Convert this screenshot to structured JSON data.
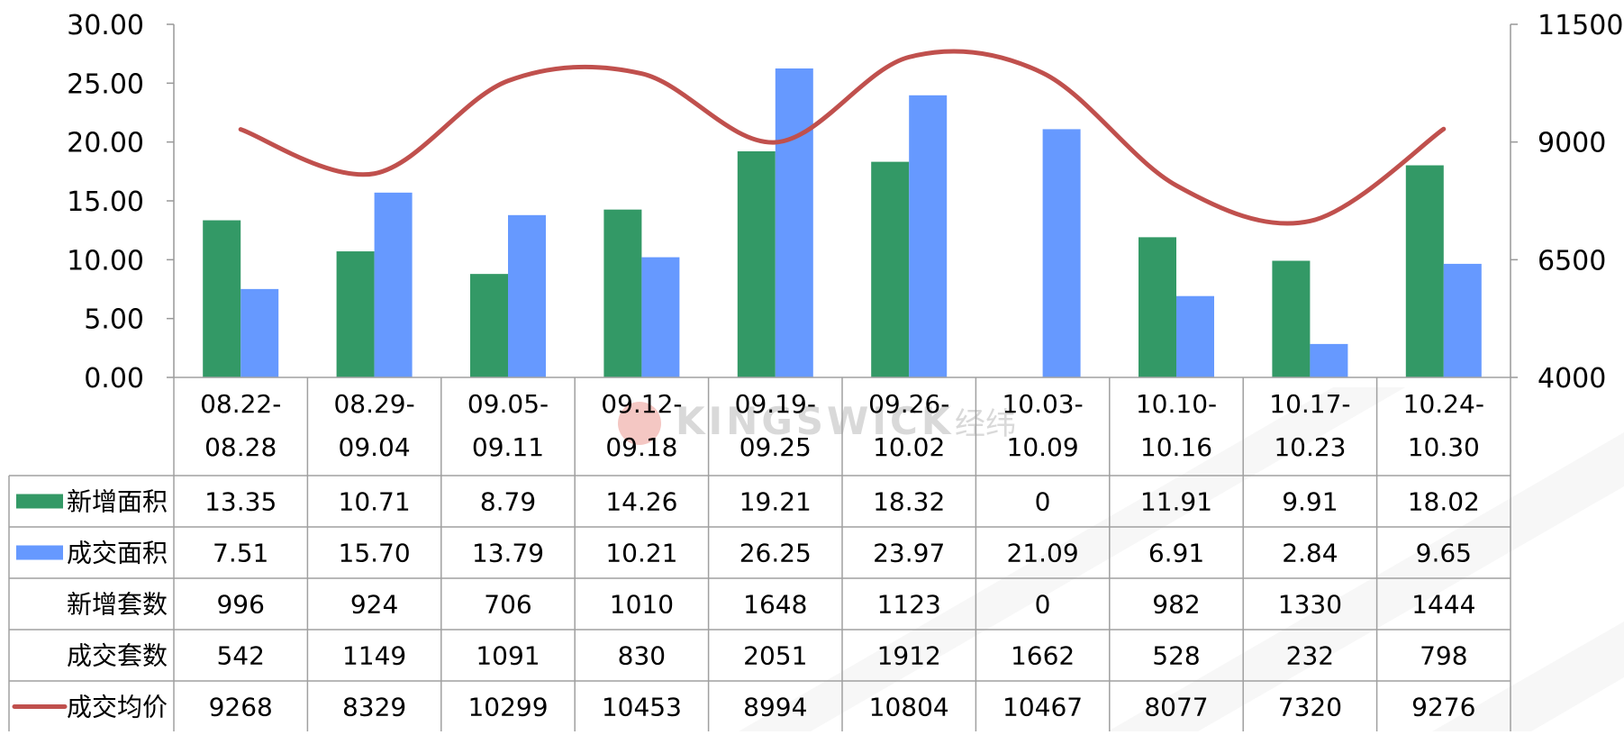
{
  "watermark": {
    "brand": "KINGSWICK",
    "brand_cn": "经纬"
  },
  "chart_data": {
    "type": "bar",
    "categories": [
      [
        "08.22-",
        "08.28"
      ],
      [
        "08.29-",
        "09.04"
      ],
      [
        "09.05-",
        "09.11"
      ],
      [
        "09.12-",
        "09.18"
      ],
      [
        "09.19-",
        "09.25"
      ],
      [
        "09.26-",
        "10.02"
      ],
      [
        "10.03-",
        "10.09"
      ],
      [
        "10.10-",
        "10.16"
      ],
      [
        "10.17-",
        "10.23"
      ],
      [
        "10.24-",
        "10.30"
      ]
    ],
    "y_left": {
      "ticks": [
        "0.00",
        "5.00",
        "10.00",
        "15.00",
        "20.00",
        "25.00",
        "30.00"
      ],
      "ylim": [
        0,
        30
      ]
    },
    "y_right": {
      "ticks": [
        "4000",
        "6500",
        "9000",
        "11500"
      ],
      "ylim": [
        4000,
        11500
      ]
    },
    "grid": false,
    "series": [
      {
        "name": "新增面积",
        "kind": "bar",
        "axis": "left",
        "color": "#339966",
        "values": [
          13.35,
          10.71,
          8.79,
          14.26,
          19.21,
          18.32,
          0,
          11.91,
          9.91,
          18.02
        ],
        "labels": [
          "13.35",
          "10.71",
          "8.79",
          "14.26",
          "19.21",
          "18.32",
          "0",
          "11.91",
          "9.91",
          "18.02"
        ]
      },
      {
        "name": "成交面积",
        "kind": "bar",
        "axis": "left",
        "color": "#6699ff",
        "values": [
          7.51,
          15.7,
          13.79,
          10.21,
          26.25,
          23.97,
          21.09,
          6.91,
          2.84,
          9.65
        ],
        "labels": [
          "7.51",
          "15.70",
          "13.79",
          "10.21",
          "26.25",
          "23.97",
          "21.09",
          "6.91",
          "2.84",
          "9.65"
        ]
      },
      {
        "name": "新增套数",
        "kind": "table",
        "values": [
          "996",
          "924",
          "706",
          "1010",
          "1648",
          "1123",
          "0",
          "982",
          "1330",
          "1444"
        ]
      },
      {
        "name": "成交套数",
        "kind": "table",
        "values": [
          "542",
          "1149",
          "1091",
          "830",
          "2051",
          "1912",
          "1662",
          "528",
          "232",
          "798"
        ]
      },
      {
        "name": "成交均价",
        "kind": "line",
        "axis": "right",
        "color": "#c0504d",
        "values": [
          9268,
          8329,
          10299,
          10453,
          8994,
          10804,
          10467,
          8077,
          7320,
          9276
        ],
        "labels": [
          "9268",
          "8329",
          "10299",
          "10453",
          "8994",
          "10804",
          "10467",
          "8077",
          "7320",
          "9276"
        ]
      }
    ]
  }
}
